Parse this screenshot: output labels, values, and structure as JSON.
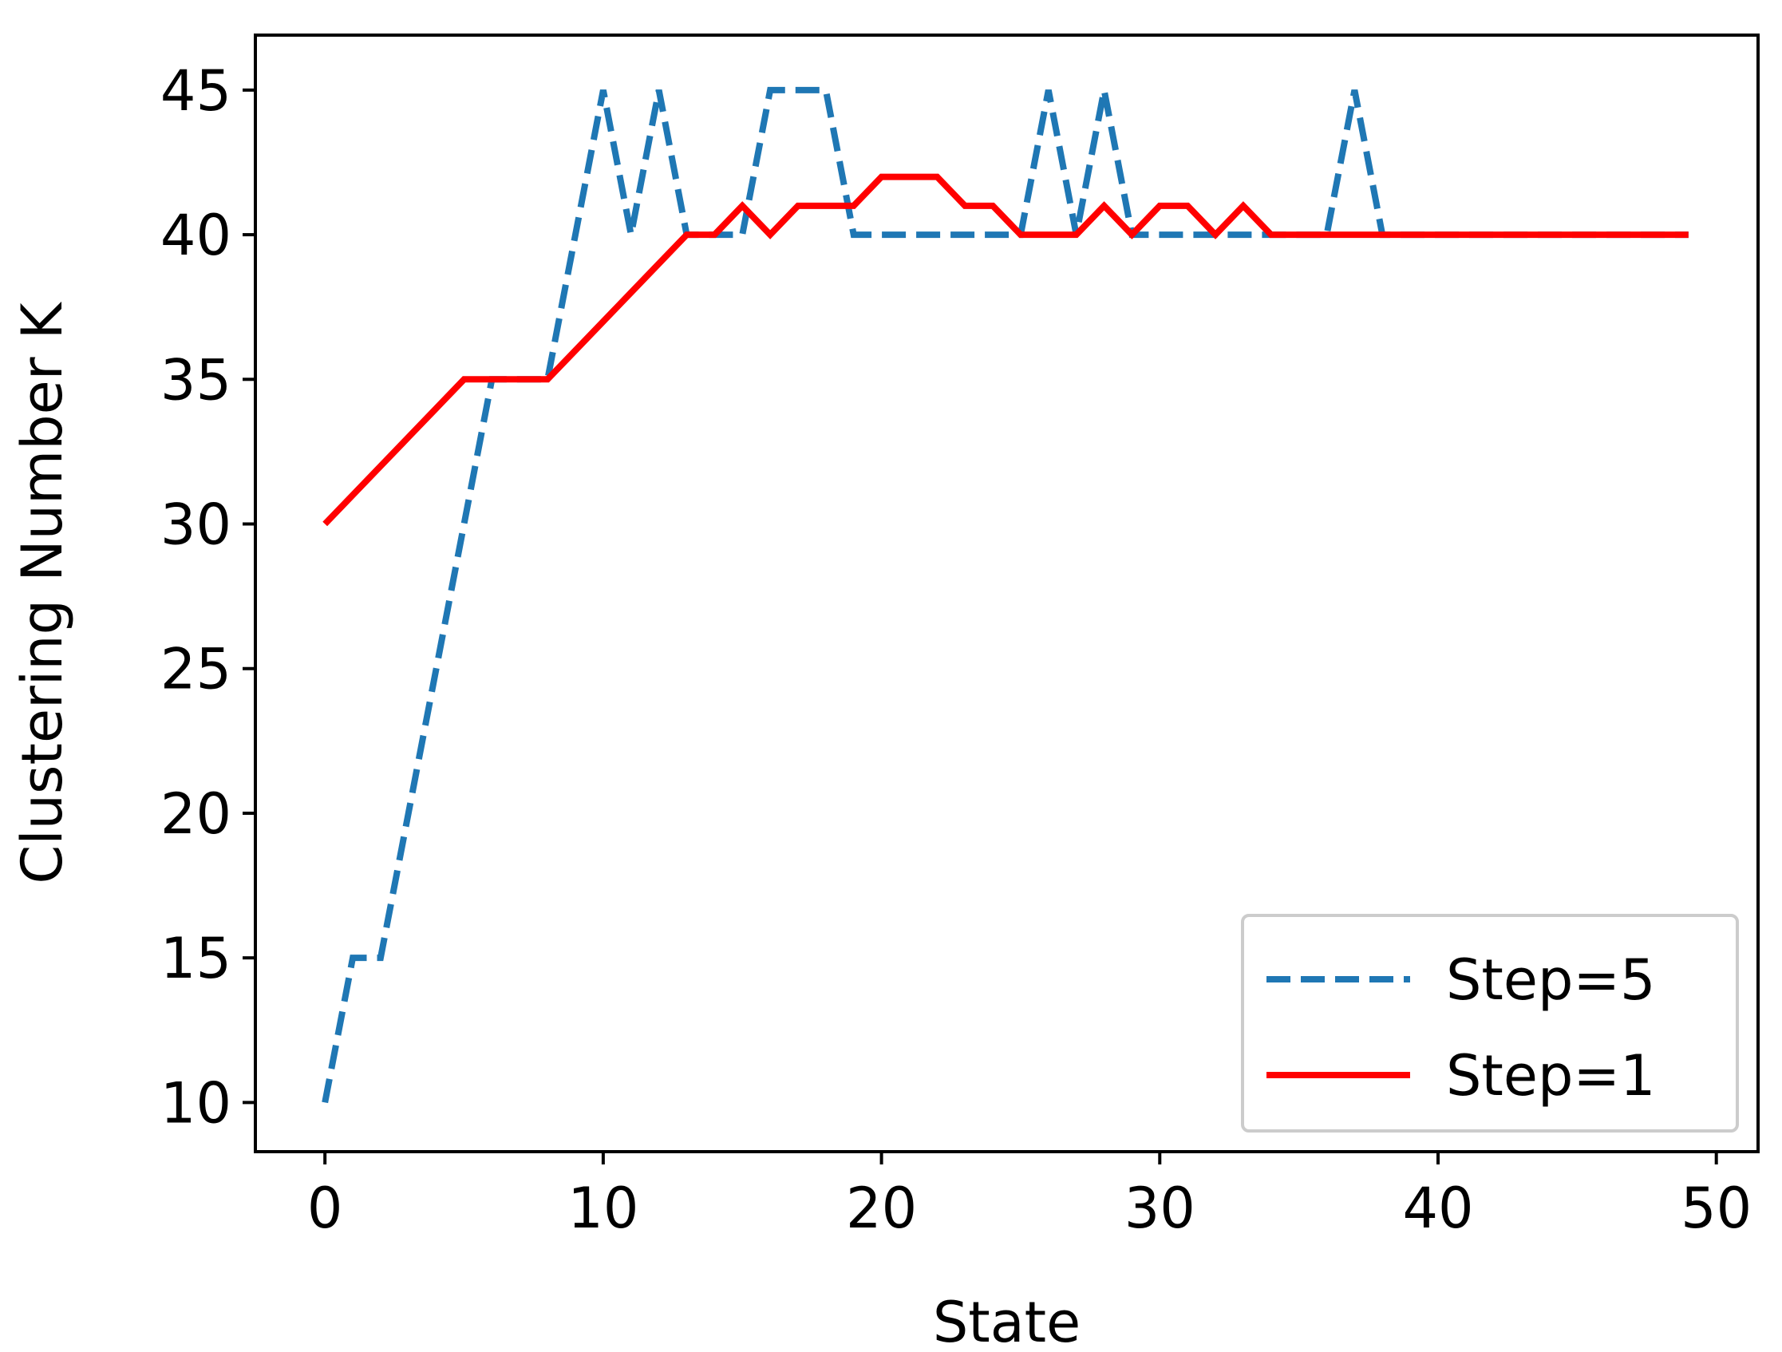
{
  "chart_data": {
    "type": "line",
    "title": "",
    "xlabel": "State",
    "ylabel": "Clustering Number K",
    "xlim": [
      -2.5,
      51.5
    ],
    "ylim": [
      8.3,
      46.9
    ],
    "xticks": [
      0,
      10,
      20,
      30,
      40,
      50
    ],
    "yticks": [
      10,
      15,
      20,
      25,
      30,
      35,
      40,
      45
    ],
    "grid": false,
    "legend_position": "lower right",
    "x": [
      0,
      1,
      2,
      3,
      4,
      5,
      6,
      7,
      8,
      9,
      10,
      11,
      12,
      13,
      14,
      15,
      16,
      17,
      18,
      19,
      20,
      21,
      22,
      23,
      24,
      25,
      26,
      27,
      28,
      29,
      30,
      31,
      32,
      33,
      34,
      35,
      36,
      37,
      38,
      39,
      40,
      41,
      42,
      43,
      44,
      45,
      46,
      47,
      48,
      49
    ],
    "series": [
      {
        "name": "Step=5",
        "color": "#1f77b4",
        "style": "dashed",
        "values": [
          10,
          15,
          15,
          20,
          25,
          30,
          35,
          35,
          35,
          40,
          45,
          40,
          45,
          40,
          40,
          40,
          45,
          45,
          45,
          40,
          40,
          40,
          40,
          40,
          40,
          40,
          45,
          40,
          45,
          40,
          40,
          40,
          40,
          40,
          40,
          40,
          40,
          45,
          40,
          40,
          40,
          40,
          40,
          40,
          40,
          40,
          40,
          40,
          40,
          40
        ]
      },
      {
        "name": "Step=1",
        "color": "#ff0000",
        "style": "solid",
        "values": [
          30,
          31,
          32,
          33,
          34,
          35,
          35,
          35,
          35,
          36,
          37,
          38,
          39,
          40,
          40,
          41,
          40,
          41,
          41,
          41,
          42,
          42,
          42,
          41,
          41,
          40,
          40,
          40,
          41,
          40,
          41,
          41,
          40,
          41,
          40,
          40,
          40,
          40,
          40,
          40,
          40,
          40,
          40,
          40,
          40,
          40,
          40,
          40,
          40,
          40
        ]
      }
    ]
  }
}
